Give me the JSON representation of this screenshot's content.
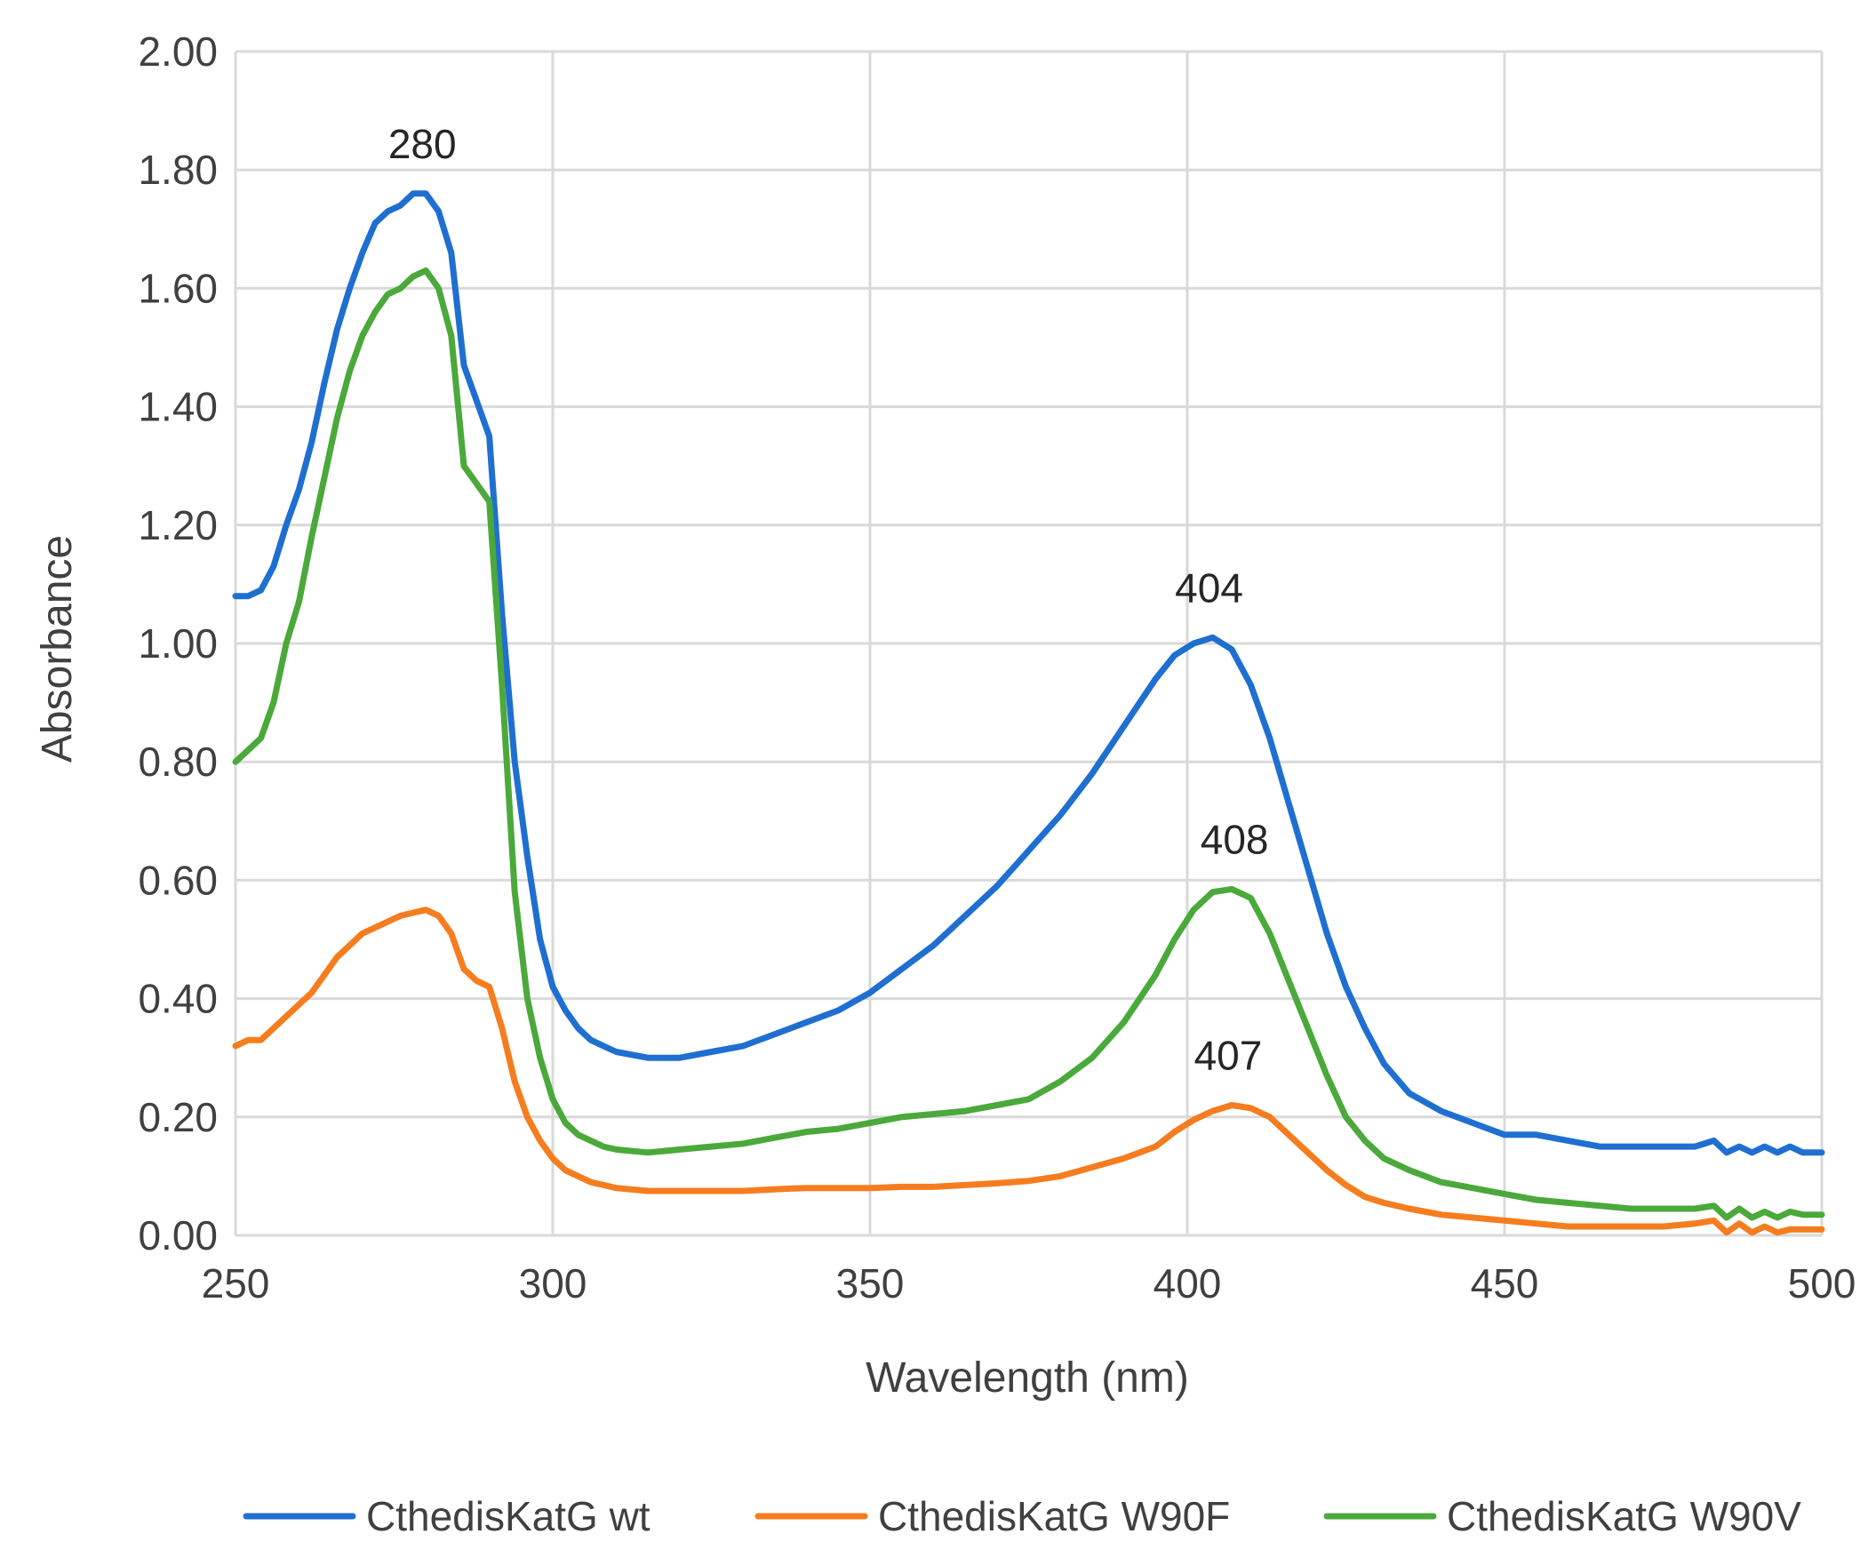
{
  "chart_data": {
    "type": "line",
    "title": "",
    "xlabel": "Wavelength (nm)",
    "ylabel": "Absorbance",
    "xlim": [
      250,
      500
    ],
    "ylim": [
      0,
      2
    ],
    "grid": true,
    "legend_position": "bottom",
    "x_ticks": [
      250,
      300,
      350,
      400,
      450,
      500
    ],
    "x_tick_labels": [
      "250",
      "300",
      "350",
      "400",
      "450",
      "500"
    ],
    "y_ticks": [
      0,
      0.2,
      0.4,
      0.6,
      0.8,
      1.0,
      1.2,
      1.4,
      1.6,
      1.8,
      2.0
    ],
    "y_tick_labels": [
      "0.00",
      "0.20",
      "0.40",
      "0.60",
      "0.80",
      "1.00",
      "1.20",
      "1.40",
      "1.60",
      "1.80",
      "2.00"
    ],
    "series": [
      {
        "name": "CthedisKatG wt",
        "color": "#1f6fd1",
        "x": [
          250,
          252,
          254,
          256,
          258,
          260,
          262,
          264,
          266,
          268,
          270,
          272,
          274,
          276,
          278,
          280,
          282,
          284,
          286,
          288,
          290,
          292,
          294,
          296,
          298,
          300,
          302,
          304,
          306,
          308,
          310,
          315,
          320,
          325,
          330,
          335,
          340,
          345,
          350,
          355,
          360,
          365,
          370,
          375,
          380,
          385,
          390,
          395,
          398,
          401,
          404,
          407,
          410,
          413,
          416,
          419,
          422,
          425,
          428,
          431,
          435,
          440,
          445,
          450,
          455,
          460,
          465,
          470,
          475,
          480,
          483,
          485,
          487,
          489,
          491,
          493,
          495,
          497,
          500
        ],
        "y": [
          1.08,
          1.08,
          1.09,
          1.13,
          1.2,
          1.26,
          1.34,
          1.44,
          1.53,
          1.6,
          1.66,
          1.71,
          1.73,
          1.74,
          1.76,
          1.76,
          1.73,
          1.66,
          1.47,
          1.41,
          1.35,
          1.05,
          0.8,
          0.64,
          0.5,
          0.42,
          0.38,
          0.35,
          0.33,
          0.32,
          0.31,
          0.3,
          0.3,
          0.31,
          0.32,
          0.34,
          0.36,
          0.38,
          0.41,
          0.45,
          0.49,
          0.54,
          0.59,
          0.65,
          0.71,
          0.78,
          0.86,
          0.94,
          0.98,
          1.0,
          1.01,
          0.99,
          0.93,
          0.84,
          0.73,
          0.62,
          0.51,
          0.42,
          0.35,
          0.29,
          0.24,
          0.21,
          0.19,
          0.17,
          0.17,
          0.16,
          0.15,
          0.15,
          0.15,
          0.15,
          0.16,
          0.14,
          0.15,
          0.14,
          0.15,
          0.14,
          0.15,
          0.14,
          0.14
        ]
      },
      {
        "name": "CthedisKatG W90F",
        "color": "#f57d1f",
        "x": [
          250,
          252,
          254,
          256,
          258,
          260,
          262,
          264,
          266,
          268,
          270,
          272,
          274,
          276,
          278,
          280,
          282,
          284,
          286,
          288,
          290,
          292,
          294,
          296,
          298,
          300,
          302,
          304,
          306,
          308,
          310,
          315,
          320,
          325,
          330,
          335,
          340,
          345,
          350,
          355,
          360,
          365,
          370,
          375,
          380,
          385,
          390,
          395,
          398,
          401,
          404,
          407,
          410,
          413,
          416,
          419,
          422,
          425,
          428,
          431,
          435,
          440,
          445,
          450,
          455,
          460,
          465,
          470,
          475,
          480,
          483,
          485,
          487,
          489,
          491,
          493,
          495,
          497,
          500
        ],
        "y": [
          0.32,
          0.33,
          0.33,
          0.35,
          0.37,
          0.39,
          0.41,
          0.44,
          0.47,
          0.49,
          0.51,
          0.52,
          0.53,
          0.54,
          0.545,
          0.55,
          0.54,
          0.51,
          0.45,
          0.43,
          0.42,
          0.35,
          0.26,
          0.2,
          0.16,
          0.13,
          0.11,
          0.1,
          0.09,
          0.085,
          0.08,
          0.075,
          0.075,
          0.075,
          0.075,
          0.078,
          0.08,
          0.08,
          0.08,
          0.082,
          0.082,
          0.085,
          0.088,
          0.092,
          0.1,
          0.115,
          0.13,
          0.15,
          0.175,
          0.195,
          0.21,
          0.22,
          0.215,
          0.2,
          0.17,
          0.14,
          0.11,
          0.085,
          0.065,
          0.055,
          0.045,
          0.035,
          0.03,
          0.025,
          0.02,
          0.015,
          0.015,
          0.015,
          0.015,
          0.02,
          0.025,
          0.005,
          0.02,
          0.005,
          0.015,
          0.005,
          0.01,
          0.01,
          0.01
        ]
      },
      {
        "name": "CthedisKatG W90V",
        "color": "#4aa93a",
        "x": [
          250,
          252,
          254,
          256,
          258,
          260,
          262,
          264,
          266,
          268,
          270,
          272,
          274,
          276,
          278,
          280,
          282,
          284,
          286,
          288,
          290,
          292,
          294,
          296,
          298,
          300,
          302,
          304,
          306,
          308,
          310,
          315,
          320,
          325,
          330,
          335,
          340,
          345,
          350,
          355,
          360,
          365,
          370,
          375,
          380,
          385,
          390,
          395,
          398,
          401,
          404,
          407,
          410,
          413,
          416,
          419,
          422,
          425,
          428,
          431,
          435,
          440,
          445,
          450,
          455,
          460,
          465,
          470,
          475,
          480,
          483,
          485,
          487,
          489,
          491,
          493,
          495,
          497,
          500
        ],
        "y": [
          0.8,
          0.82,
          0.84,
          0.9,
          1.0,
          1.07,
          1.18,
          1.28,
          1.38,
          1.46,
          1.52,
          1.56,
          1.59,
          1.6,
          1.62,
          1.63,
          1.6,
          1.52,
          1.3,
          1.27,
          1.24,
          0.93,
          0.58,
          0.4,
          0.3,
          0.23,
          0.19,
          0.17,
          0.16,
          0.15,
          0.145,
          0.14,
          0.145,
          0.15,
          0.155,
          0.165,
          0.175,
          0.18,
          0.19,
          0.2,
          0.205,
          0.21,
          0.22,
          0.23,
          0.26,
          0.3,
          0.36,
          0.44,
          0.5,
          0.55,
          0.58,
          0.585,
          0.57,
          0.51,
          0.43,
          0.35,
          0.27,
          0.2,
          0.16,
          0.13,
          0.11,
          0.09,
          0.08,
          0.07,
          0.06,
          0.055,
          0.05,
          0.045,
          0.045,
          0.045,
          0.05,
          0.03,
          0.045,
          0.03,
          0.04,
          0.03,
          0.04,
          0.035,
          0.035
        ]
      }
    ],
    "annotations": [
      {
        "text": "280",
        "x": 280,
        "y": 1.76,
        "series": 0
      },
      {
        "text": "404",
        "x": 404,
        "y": 1.01,
        "series": 0
      },
      {
        "text": "408",
        "x": 408,
        "y": 0.585,
        "series": 2
      },
      {
        "text": "407",
        "x": 407,
        "y": 0.22,
        "series": 1
      }
    ]
  }
}
